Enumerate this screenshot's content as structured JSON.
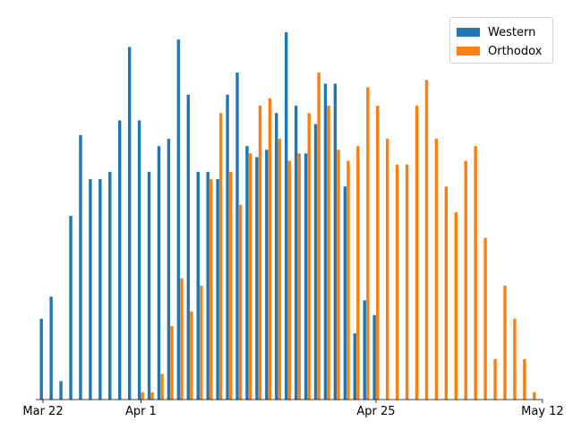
{
  "chart_data": {
    "type": "bar",
    "x_start": "Mar 22",
    "x_ticks": [
      {
        "label": "Mar 22",
        "day_index": 0
      },
      {
        "label": "Apr 1",
        "day_index": 10
      },
      {
        "label": "Apr 25",
        "day_index": 34
      },
      {
        "label": "May 12",
        "day_index": 51
      }
    ],
    "grid": false,
    "y_axis_visible": false,
    "legend_position": "top-right",
    "series": [
      {
        "name": "Western",
        "color": "#1f77b4",
        "start_index": 0,
        "values": [
          22,
          28,
          5,
          50,
          72,
          60,
          60,
          62,
          76,
          96,
          76,
          62,
          69,
          71,
          98,
          83,
          62,
          62,
          60,
          83,
          89,
          69,
          66,
          68,
          78,
          100,
          80,
          67,
          75,
          86,
          86,
          58,
          18,
          27,
          23
        ]
      },
      {
        "name": "Orthodox",
        "color": "#ff7f0e",
        "start_index": 10,
        "values": [
          2,
          2,
          7,
          20,
          33,
          24,
          31,
          60,
          78,
          62,
          53,
          67,
          80,
          82,
          71,
          65,
          67,
          78,
          89,
          80,
          68,
          65,
          69,
          85,
          80,
          71,
          64,
          64,
          80,
          87,
          71,
          58,
          51,
          65,
          69,
          44,
          11,
          31,
          22,
          11,
          2
        ]
      }
    ]
  }
}
